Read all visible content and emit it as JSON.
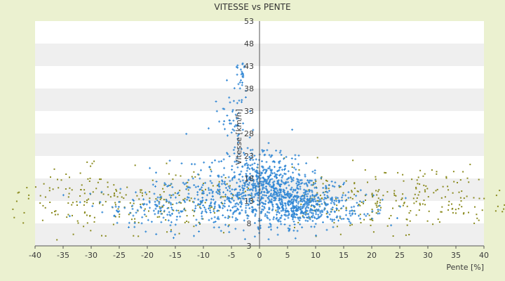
{
  "chart_data": {
    "type": "scatter",
    "title": "VITESSE vs PENTE",
    "xlabel": "Pente [%]",
    "ylabel": "Vitesse [km/h]",
    "xlim": [
      -40,
      40
    ],
    "ylim": [
      3,
      53
    ],
    "x_ticks": [
      -40,
      -35,
      -30,
      -25,
      -20,
      -15,
      -10,
      -5,
      0,
      5,
      10,
      15,
      20,
      25,
      30,
      35,
      40
    ],
    "y_ticks": [
      3,
      8,
      13,
      18,
      23,
      28,
      33,
      38,
      43,
      48,
      53
    ],
    "x_tick_labels": [
      "-40",
      "-35",
      "-30",
      "-25",
      "-20",
      "-15",
      "-10",
      "-5",
      "0",
      "5",
      "10",
      "15",
      "20",
      "25",
      "30",
      "35",
      "40"
    ],
    "y_tick_labels": [
      "3",
      "8",
      "13",
      "18",
      "23",
      "28",
      "33",
      "38",
      "43",
      "48",
      "53"
    ],
    "grid": "alternating horizontal bands",
    "legend": "none",
    "colors": {
      "page_background": "#ebf1d0",
      "plot_background": "#ffffff",
      "band": "#efefef",
      "series_1": "#2f86d4",
      "series_2": "#8a8a1e"
    },
    "series": [
      {
        "marker": "plus",
        "color": "#2f86d4",
        "clusters": [
          {
            "x": 3.5,
            "sx": 4.5,
            "y": 13.5,
            "sy": 3.2,
            "n": 420
          },
          {
            "x": 8,
            "sx": 3.5,
            "y": 12,
            "sy": 2.2,
            "n": 240
          },
          {
            "x": -3,
            "sx": 5.5,
            "y": 16,
            "sy": 4.5,
            "n": 280
          },
          {
            "x": 1,
            "sx": 2.5,
            "y": 18.5,
            "sy": 3.0,
            "n": 160
          },
          {
            "x": -12,
            "sx": 6,
            "y": 12,
            "sy": 3.0,
            "n": 160
          },
          {
            "x": 15,
            "sx": 5,
            "y": 11,
            "sy": 1.8,
            "n": 90
          },
          {
            "x": -21,
            "sx": 6,
            "y": 11,
            "sy": 2.0,
            "n": 60
          },
          {
            "x": -4.5,
            "sx": 1.4,
            "y": 32,
            "sy": 4.5,
            "n": 55
          },
          {
            "x": -3.2,
            "sx": 0.7,
            "y": 41,
            "sy": 2.2,
            "n": 20
          },
          {
            "x": 0,
            "sx": 0.3,
            "y": 6,
            "sy": 1.8,
            "n": 12
          }
        ]
      },
      {
        "marker": "dot",
        "color": "#8a8a1e",
        "clusters": [
          {
            "x": -26,
            "sx": 9,
            "y": 12,
            "sy": 3.0,
            "n": 170
          },
          {
            "x": 26,
            "sx": 9,
            "y": 12,
            "sy": 3.0,
            "n": 170
          },
          {
            "x": -11,
            "sx": 5,
            "y": 14,
            "sy": 3.5,
            "n": 70
          },
          {
            "x": 12,
            "sx": 5,
            "y": 13.5,
            "sy": 3.5,
            "n": 70
          },
          {
            "x": -33,
            "sx": 4,
            "y": 17.5,
            "sy": 1.8,
            "n": 25
          },
          {
            "x": 27,
            "sx": 8,
            "y": 18.5,
            "sy": 1.8,
            "n": 30
          }
        ]
      }
    ]
  }
}
